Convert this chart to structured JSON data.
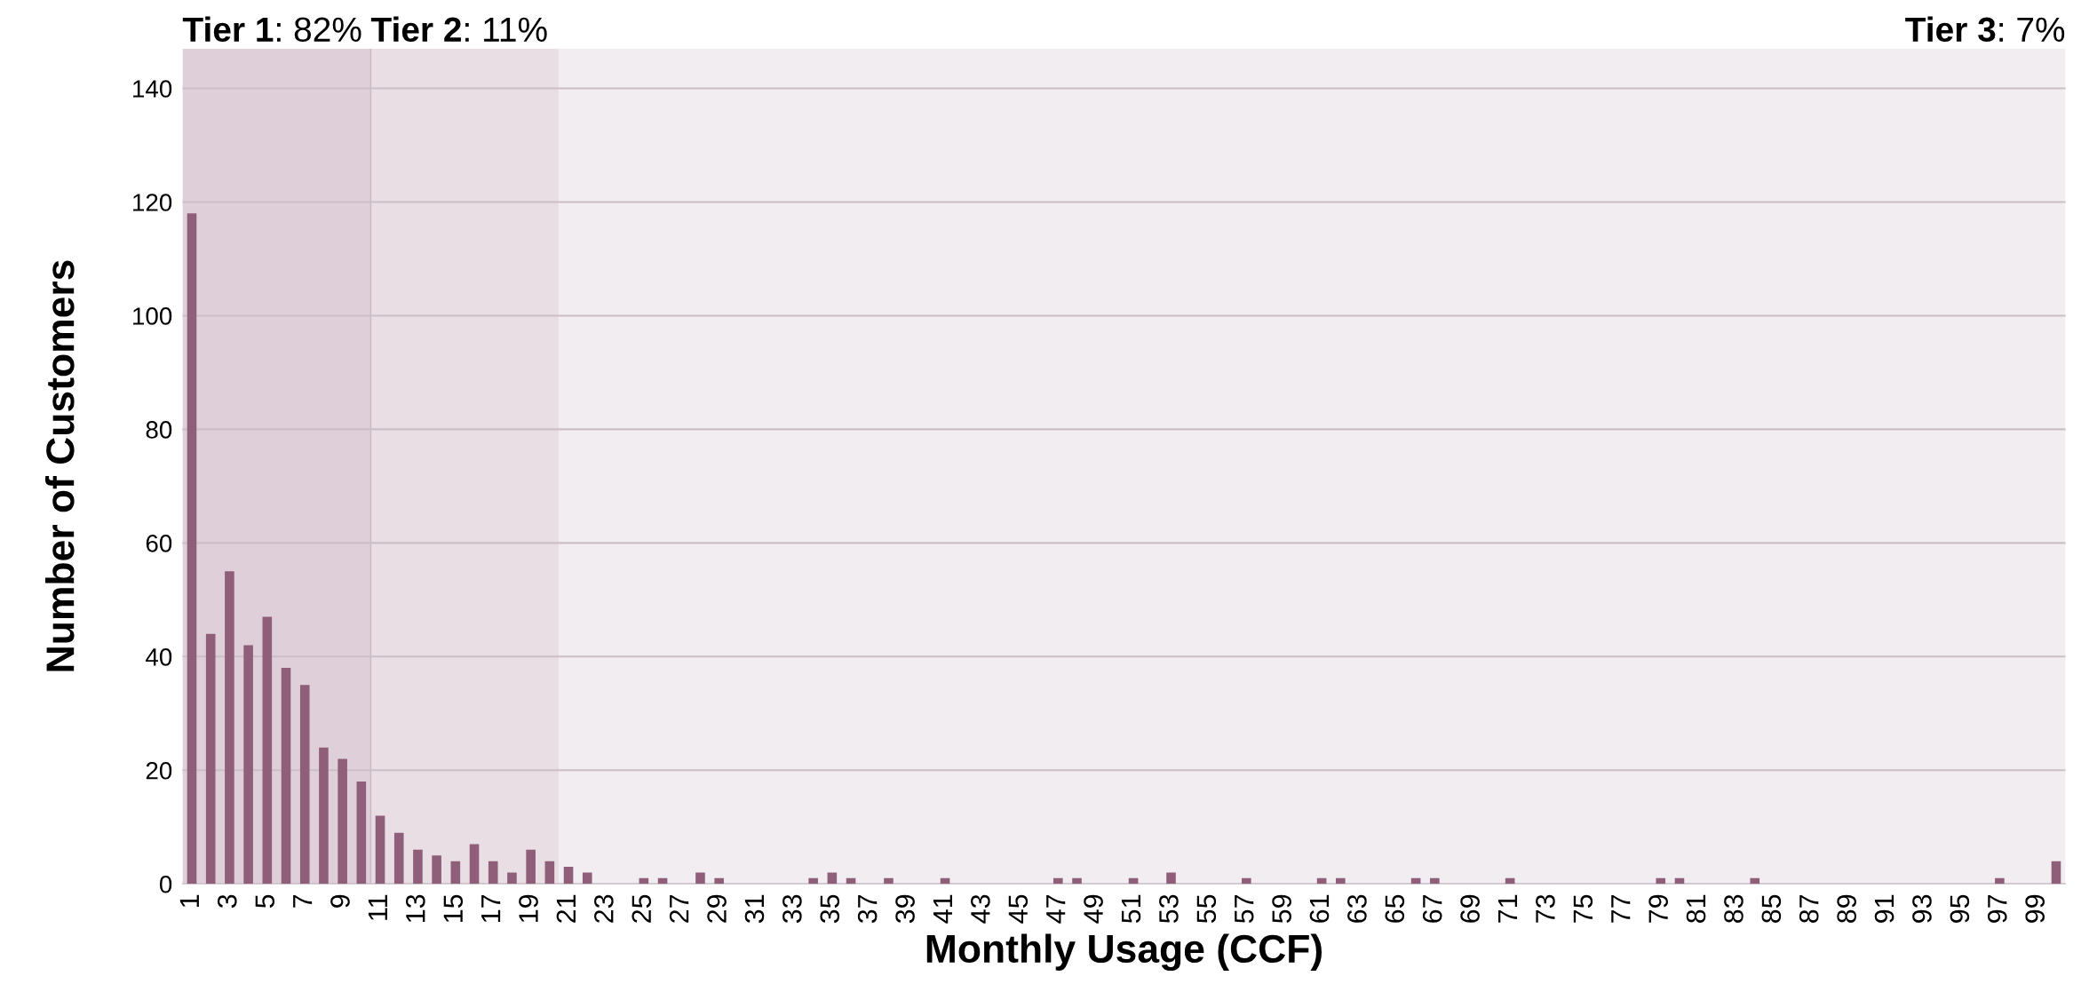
{
  "chart_data": {
    "type": "bar",
    "xlabel": "Monthly Usage (CCF)",
    "ylabel": "Number of Customers",
    "x": [
      1,
      2,
      3,
      4,
      5,
      6,
      7,
      8,
      9,
      10,
      11,
      12,
      13,
      14,
      15,
      16,
      17,
      18,
      19,
      20,
      21,
      22,
      23,
      24,
      25,
      26,
      27,
      28,
      29,
      30,
      31,
      32,
      33,
      34,
      35,
      36,
      37,
      38,
      39,
      40,
      41,
      42,
      43,
      44,
      45,
      46,
      47,
      48,
      49,
      50,
      51,
      52,
      53,
      54,
      55,
      56,
      57,
      58,
      59,
      60,
      61,
      62,
      63,
      64,
      65,
      66,
      67,
      68,
      69,
      70,
      71,
      72,
      73,
      74,
      75,
      76,
      77,
      78,
      79,
      80,
      81,
      82,
      83,
      84,
      85,
      86,
      87,
      88,
      89,
      90,
      91,
      92,
      93,
      94,
      95,
      96,
      97,
      98,
      99,
      100
    ],
    "values": [
      118,
      44,
      55,
      42,
      47,
      38,
      35,
      24,
      22,
      18,
      12,
      9,
      6,
      5,
      4,
      7,
      4,
      2,
      6,
      4,
      3,
      2,
      0,
      0,
      1,
      1,
      0,
      2,
      1,
      0,
      0,
      0,
      0,
      1,
      2,
      1,
      0,
      1,
      0,
      0,
      1,
      0,
      0,
      0,
      0,
      0,
      1,
      1,
      0,
      0,
      1,
      0,
      2,
      0,
      0,
      0,
      1,
      0,
      0,
      0,
      1,
      1,
      0,
      0,
      0,
      1,
      1,
      0,
      0,
      0,
      1,
      0,
      0,
      0,
      0,
      0,
      0,
      0,
      1,
      1,
      0,
      0,
      0,
      1,
      0,
      0,
      0,
      0,
      0,
      0,
      0,
      0,
      0,
      0,
      0,
      0,
      1,
      0,
      0,
      4
    ],
    "color": "#8f5f7a",
    "xlim": [
      0.5,
      100.5
    ],
    "xticks": [
      1,
      3,
      5,
      7,
      9,
      11,
      13,
      15,
      17,
      19,
      21,
      23,
      25,
      27,
      29,
      31,
      33,
      35,
      37,
      39,
      41,
      43,
      45,
      47,
      49,
      51,
      53,
      55,
      57,
      59,
      61,
      63,
      65,
      67,
      69,
      71,
      73,
      75,
      77,
      79,
      81,
      83,
      85,
      87,
      89,
      91,
      93,
      95,
      97,
      99
    ],
    "ref_lines": [
      {
        "axis": "x",
        "value": 10.5,
        "color": "#c9b8c3"
      }
    ],
    "ylim": [
      0,
      147
    ],
    "yticks": [
      0,
      20,
      40,
      60,
      80,
      100,
      120,
      140
    ],
    "grid": "y",
    "bands": [
      {
        "axis": "x",
        "from": 0.5,
        "to": 10.5,
        "label": "Tier 1: 82%",
        "color": "#dfcfd9"
      },
      {
        "axis": "x",
        "from": 10.5,
        "to": 20.5,
        "label": "Tier 2: 11%",
        "color": "#e9dee4"
      },
      {
        "axis": "x",
        "from": 20.5,
        "to": 100.5,
        "label": "Tier 3: 7%",
        "color": "#f2edf1"
      }
    ]
  }
}
